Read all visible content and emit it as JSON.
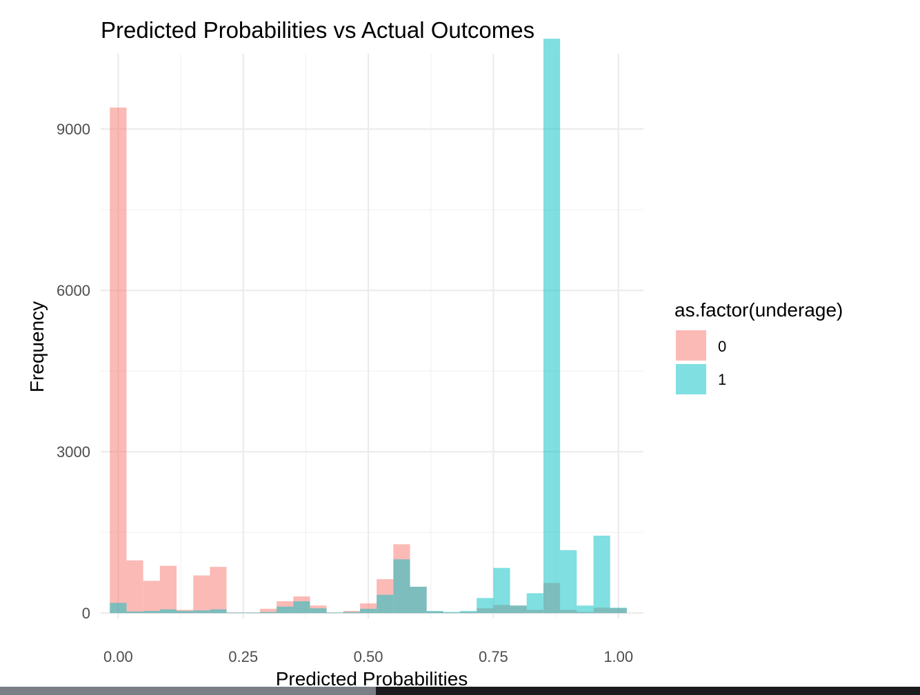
{
  "chart_data": {
    "type": "bar",
    "title": "Predicted Probabilities vs Actual Outcomes",
    "xlabel": "Predicted Probabilities",
    "ylabel": "Frequency",
    "xlim": [
      -0.035,
      1.05
    ],
    "ylim": [
      -100,
      10400
    ],
    "x_ticks": [
      "0.00",
      "0.25",
      "0.50",
      "0.75",
      "1.00"
    ],
    "x_tick_values": [
      0,
      0.25,
      0.5,
      0.75,
      1.0
    ],
    "y_ticks": [
      "0",
      "3000",
      "6000",
      "9000"
    ],
    "y_tick_values": [
      0,
      3000,
      6000,
      9000
    ],
    "bin_width": 0.0333,
    "bin_centers": [
      0.0,
      0.0333,
      0.0667,
      0.1,
      0.1333,
      0.1667,
      0.2,
      0.2333,
      0.2667,
      0.3,
      0.3333,
      0.3667,
      0.4,
      0.4333,
      0.4667,
      0.5,
      0.5333,
      0.5667,
      0.6,
      0.6333,
      0.6667,
      0.7,
      0.7333,
      0.7667,
      0.8,
      0.8333,
      0.8667,
      0.9,
      0.9333,
      0.9667,
      1.0
    ],
    "series": [
      {
        "name": "0",
        "color": "#F8766D",
        "values": [
          9400,
          980,
          600,
          880,
          60,
          700,
          860,
          10,
          10,
          80,
          220,
          310,
          140,
          10,
          40,
          180,
          630,
          1280,
          490,
          30,
          10,
          20,
          90,
          150,
          140,
          60,
          560,
          60,
          20,
          100,
          90
        ]
      },
      {
        "name": "1",
        "color": "#00BFC4",
        "values": [
          190,
          30,
          40,
          70,
          40,
          50,
          70,
          10,
          10,
          20,
          120,
          220,
          90,
          10,
          20,
          80,
          340,
          1000,
          490,
          40,
          20,
          40,
          280,
          840,
          140,
          370,
          10680,
          1170,
          140,
          1440,
          100
        ]
      }
    ],
    "fill_opacity": 0.5,
    "grid": true,
    "legend": {
      "title": "as.factor(underage)",
      "position": "right",
      "entries": [
        "0",
        "1"
      ]
    }
  }
}
